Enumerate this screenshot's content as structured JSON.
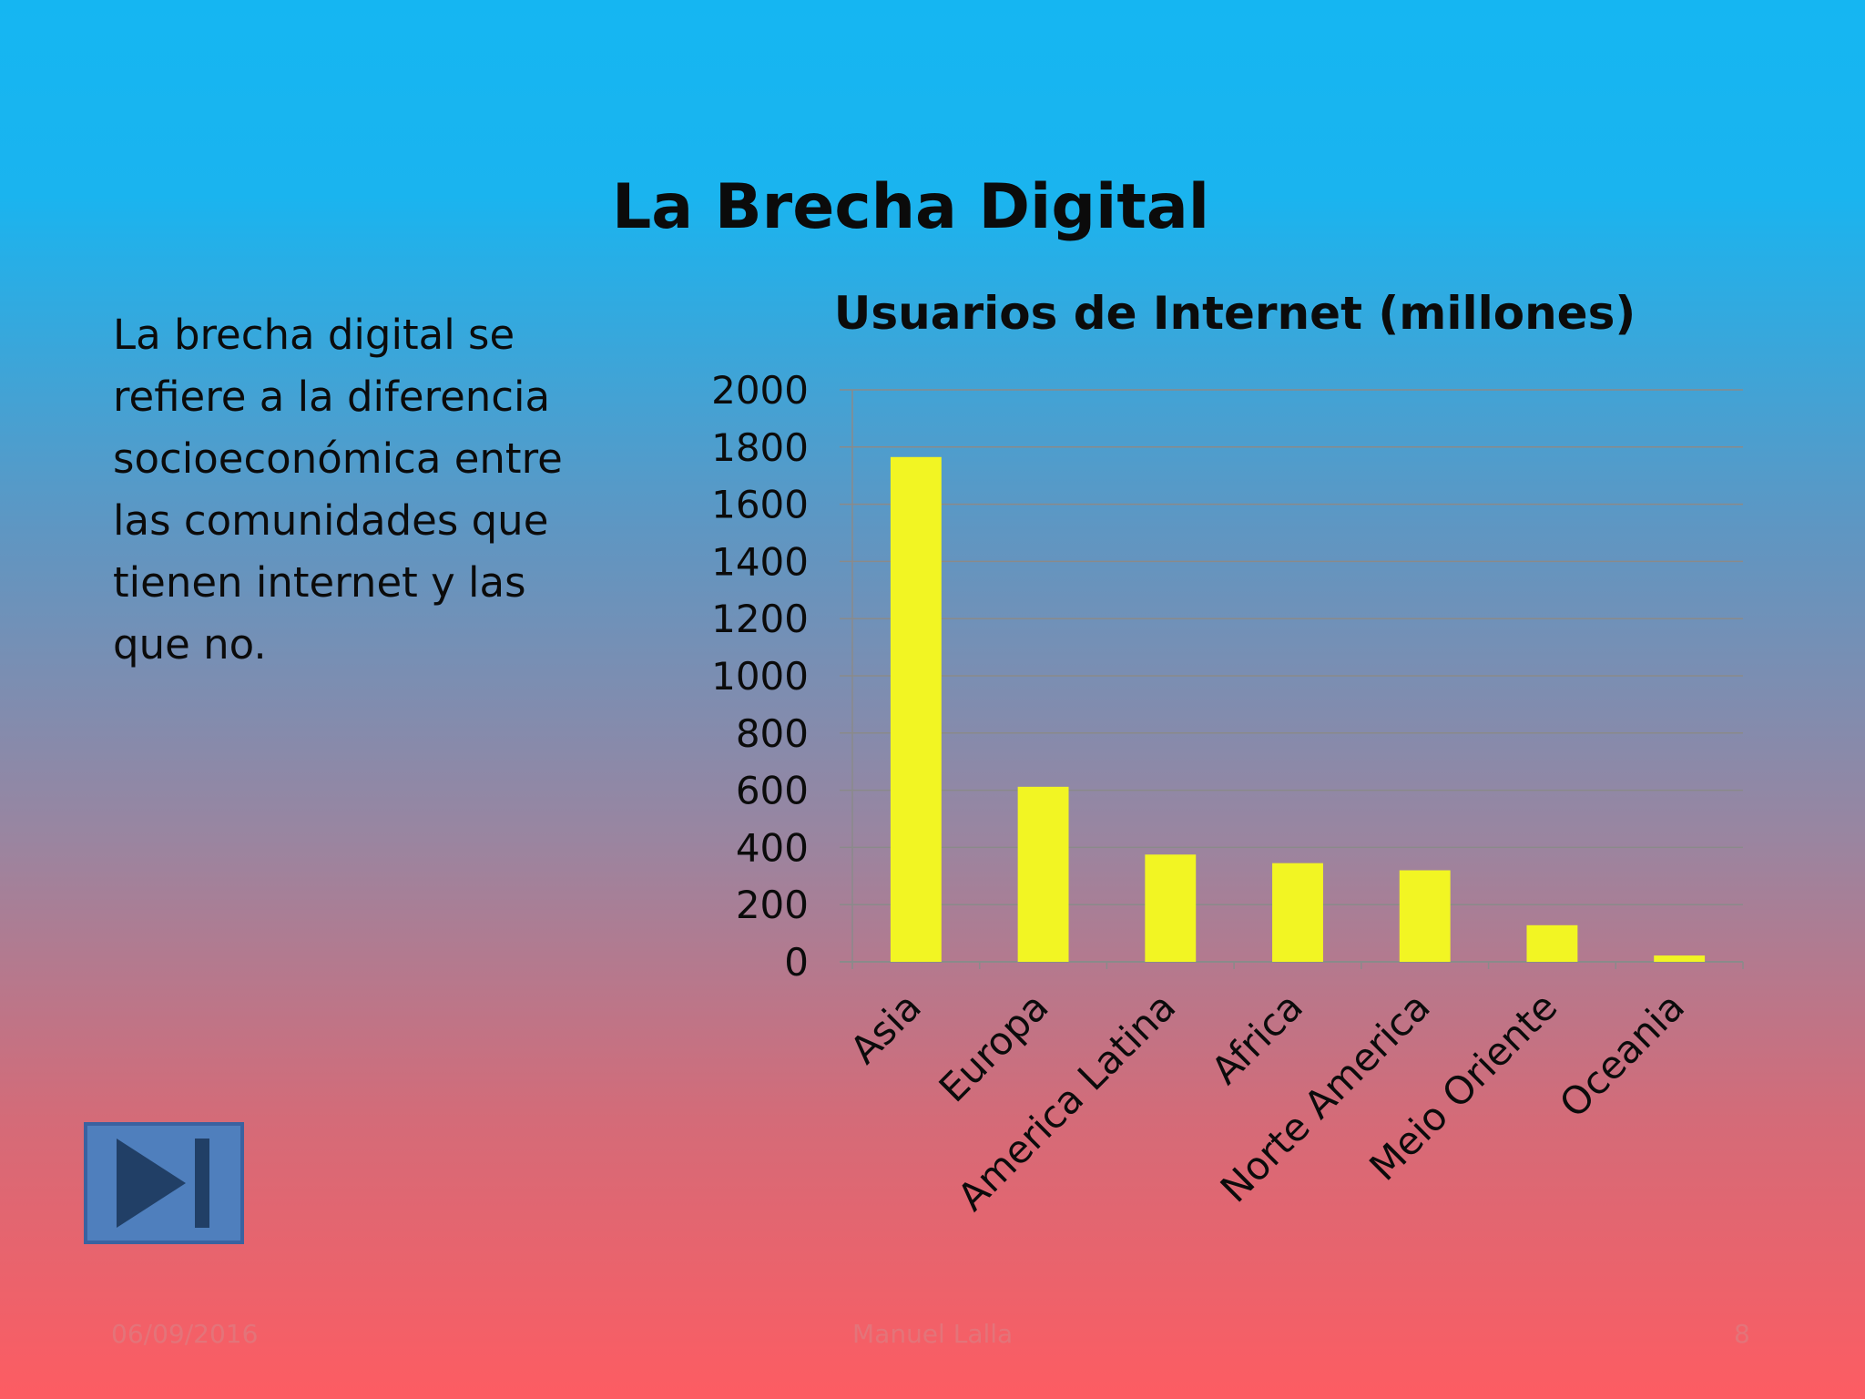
{
  "slide": {
    "title": "La Brecha Digital",
    "body_lines": [
      "La brecha digital se",
      "refiere a la diferencia",
      "socioeconómica entre",
      "las comunidades que",
      "tienen internet y las",
      "que no."
    ],
    "footer": {
      "date": "06/09/2016",
      "author": "Manuel Lalla",
      "page_number": "8"
    },
    "next_button_icon": "skip-forward-icon"
  },
  "colors": {
    "bar": "#f2f523",
    "gridline": "#8a8a8a",
    "text": "#0b0b0b",
    "button_fill": "#4f7fbd",
    "button_border": "#3a62a0",
    "button_icon": "#213f66"
  },
  "chart_data": {
    "type": "bar",
    "title": "Usuarios de Internet (millones)",
    "categories": [
      "Asia",
      "Europa",
      "America Latina",
      "Africa",
      "Norte America",
      "Meio Oriente",
      "Oceania"
    ],
    "values": [
      1765,
      612,
      375,
      345,
      320,
      128,
      22
    ],
    "ylim": [
      0,
      2000
    ],
    "yticks": [
      0,
      200,
      400,
      600,
      800,
      1000,
      1200,
      1400,
      1600,
      1800,
      2000
    ],
    "grid": true,
    "legend": "none"
  }
}
